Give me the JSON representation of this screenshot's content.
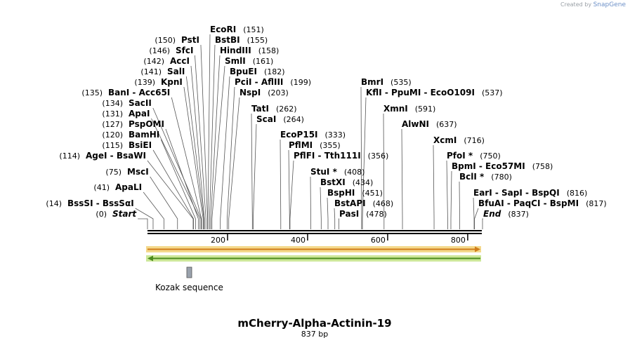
{
  "credit": {
    "created_by": "Created by",
    "brand": "SnapGene"
  },
  "plasmid": {
    "name": "mCherry-Alpha-Actinin-19",
    "length_label": "837 bp",
    "length": 837
  },
  "axis": {
    "ticks": [
      200,
      400,
      600,
      800
    ]
  },
  "feature": {
    "label": "Kozak sequence",
    "start": 100,
    "end": 110
  },
  "colors": {
    "orange_arrow": "#e8a23a",
    "orange_halo": "#f4d98c",
    "green_arrow": "#5f9f2a",
    "green_halo": "#cde89a",
    "kozak": "#9aa2ad"
  },
  "sites": [
    {
      "label": "Start",
      "pos": "(0)",
      "bp": 0,
      "italic": true
    },
    {
      "label": "BssSI  -  BssSαI",
      "pos": "(14)",
      "bp": 14
    },
    {
      "label": "ApaLI",
      "pos": "(41)",
      "bp": 41
    },
    {
      "label": "MscI",
      "pos": "(75)",
      "bp": 75
    },
    {
      "label": "AgeI  -  BsaWI",
      "pos": "(114)",
      "bp": 114
    },
    {
      "label": "BsiEI",
      "pos": "(115)",
      "bp": 115
    },
    {
      "label": "BamHI",
      "pos": "(120)",
      "bp": 120
    },
    {
      "label": "PspOMI",
      "pos": "(127)",
      "bp": 127
    },
    {
      "label": "ApaI",
      "pos": "(131)",
      "bp": 131
    },
    {
      "label": "SacII",
      "pos": "(134)",
      "bp": 134
    },
    {
      "label": "BanI  -  Acc65I",
      "pos": "(135)",
      "bp": 135
    },
    {
      "label": "KpnI",
      "pos": "(139)",
      "bp": 139
    },
    {
      "label": "SalI",
      "pos": "(141)",
      "bp": 141
    },
    {
      "label": "AccI",
      "pos": "(142)",
      "bp": 142
    },
    {
      "label": "SfcI",
      "pos": "(146)",
      "bp": 146
    },
    {
      "label": "PstI",
      "pos": "(150)",
      "bp": 150
    },
    {
      "label": "EcoRI",
      "pos": "(151)",
      "bp": 151
    },
    {
      "label": "BstBI",
      "pos": "(155)",
      "bp": 155
    },
    {
      "label": "HindIII",
      "pos": "(158)",
      "bp": 158
    },
    {
      "label": "SmlI",
      "pos": "(161)",
      "bp": 161
    },
    {
      "label": "BpuEI",
      "pos": "(182)",
      "bp": 182
    },
    {
      "label": "PciI  -  AflIII",
      "pos": "(199)",
      "bp": 199
    },
    {
      "label": "NspI",
      "pos": "(203)",
      "bp": 203
    },
    {
      "label": "TatI",
      "pos": "(262)",
      "bp": 262
    },
    {
      "label": "ScaI",
      "pos": "(264)",
      "bp": 264
    },
    {
      "label": "EcoP15I",
      "pos": "(333)",
      "bp": 333
    },
    {
      "label": "PflMI",
      "pos": "(355)",
      "bp": 355
    },
    {
      "label": "PflFI  -  Tth111I",
      "pos": "(356)",
      "bp": 356
    },
    {
      "label": "StuI *",
      "pos": "(408)",
      "bp": 408
    },
    {
      "label": "BstXI",
      "pos": "(434)",
      "bp": 434
    },
    {
      "label": "BspHI",
      "pos": "(451)",
      "bp": 451
    },
    {
      "label": "BstAPI",
      "pos": "(468)",
      "bp": 468
    },
    {
      "label": "PasI",
      "pos": "(478)",
      "bp": 478
    },
    {
      "label": "BmrI",
      "pos": "(535)",
      "bp": 535
    },
    {
      "label": "KflI  -  PpuMI  -  EcoO109I",
      "pos": "(537)",
      "bp": 537
    },
    {
      "label": "XmnI",
      "pos": "(591)",
      "bp": 591
    },
    {
      "label": "AlwNI",
      "pos": "(637)",
      "bp": 637
    },
    {
      "label": "XcmI",
      "pos": "(716)",
      "bp": 716
    },
    {
      "label": "PfoI *",
      "pos": "(750)",
      "bp": 750
    },
    {
      "label": "BpmI  -  Eco57MI",
      "pos": "(758)",
      "bp": 758
    },
    {
      "label": "BclI *",
      "pos": "(780)",
      "bp": 780
    },
    {
      "label": "EarI  -  SapI  -  BspQI",
      "pos": "(816)",
      "bp": 816
    },
    {
      "label": "BfuAI  -  PaqCI  -  BspMI",
      "pos": "(817)",
      "bp": 817
    },
    {
      "label": "End",
      "pos": "(837)",
      "bp": 837,
      "italic": true
    }
  ]
}
